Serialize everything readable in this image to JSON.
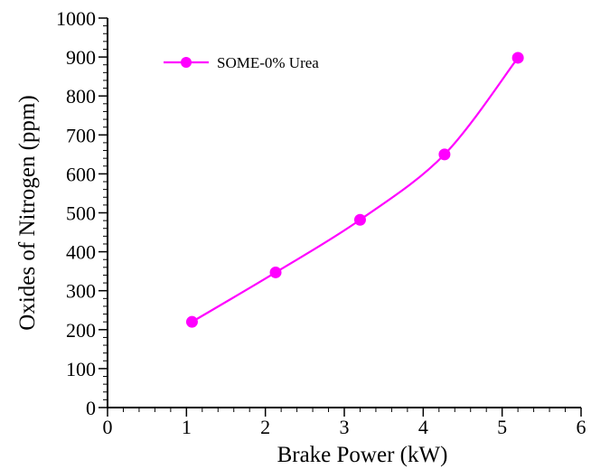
{
  "chart_data": {
    "type": "line",
    "title": "",
    "xlabel": "Brake Power (kW)",
    "ylabel": "Oxides of Nitrogen (ppm)",
    "xlim": [
      0,
      6
    ],
    "ylim": [
      0,
      1000
    ],
    "x_ticks": [
      "0",
      "1",
      "2",
      "3",
      "4",
      "5",
      "6"
    ],
    "y_ticks": [
      "0",
      "100",
      "200",
      "300",
      "400",
      "500",
      "600",
      "700",
      "800",
      "900",
      "1000"
    ],
    "grid": false,
    "legend_position": "top-left",
    "series": [
      {
        "name": "SOME-0% Urea",
        "color": "#ff00ff",
        "marker": "circle",
        "x": [
          1.07,
          2.13,
          3.2,
          4.27,
          5.2
        ],
        "y": [
          220,
          347,
          482,
          650,
          898
        ]
      }
    ]
  }
}
